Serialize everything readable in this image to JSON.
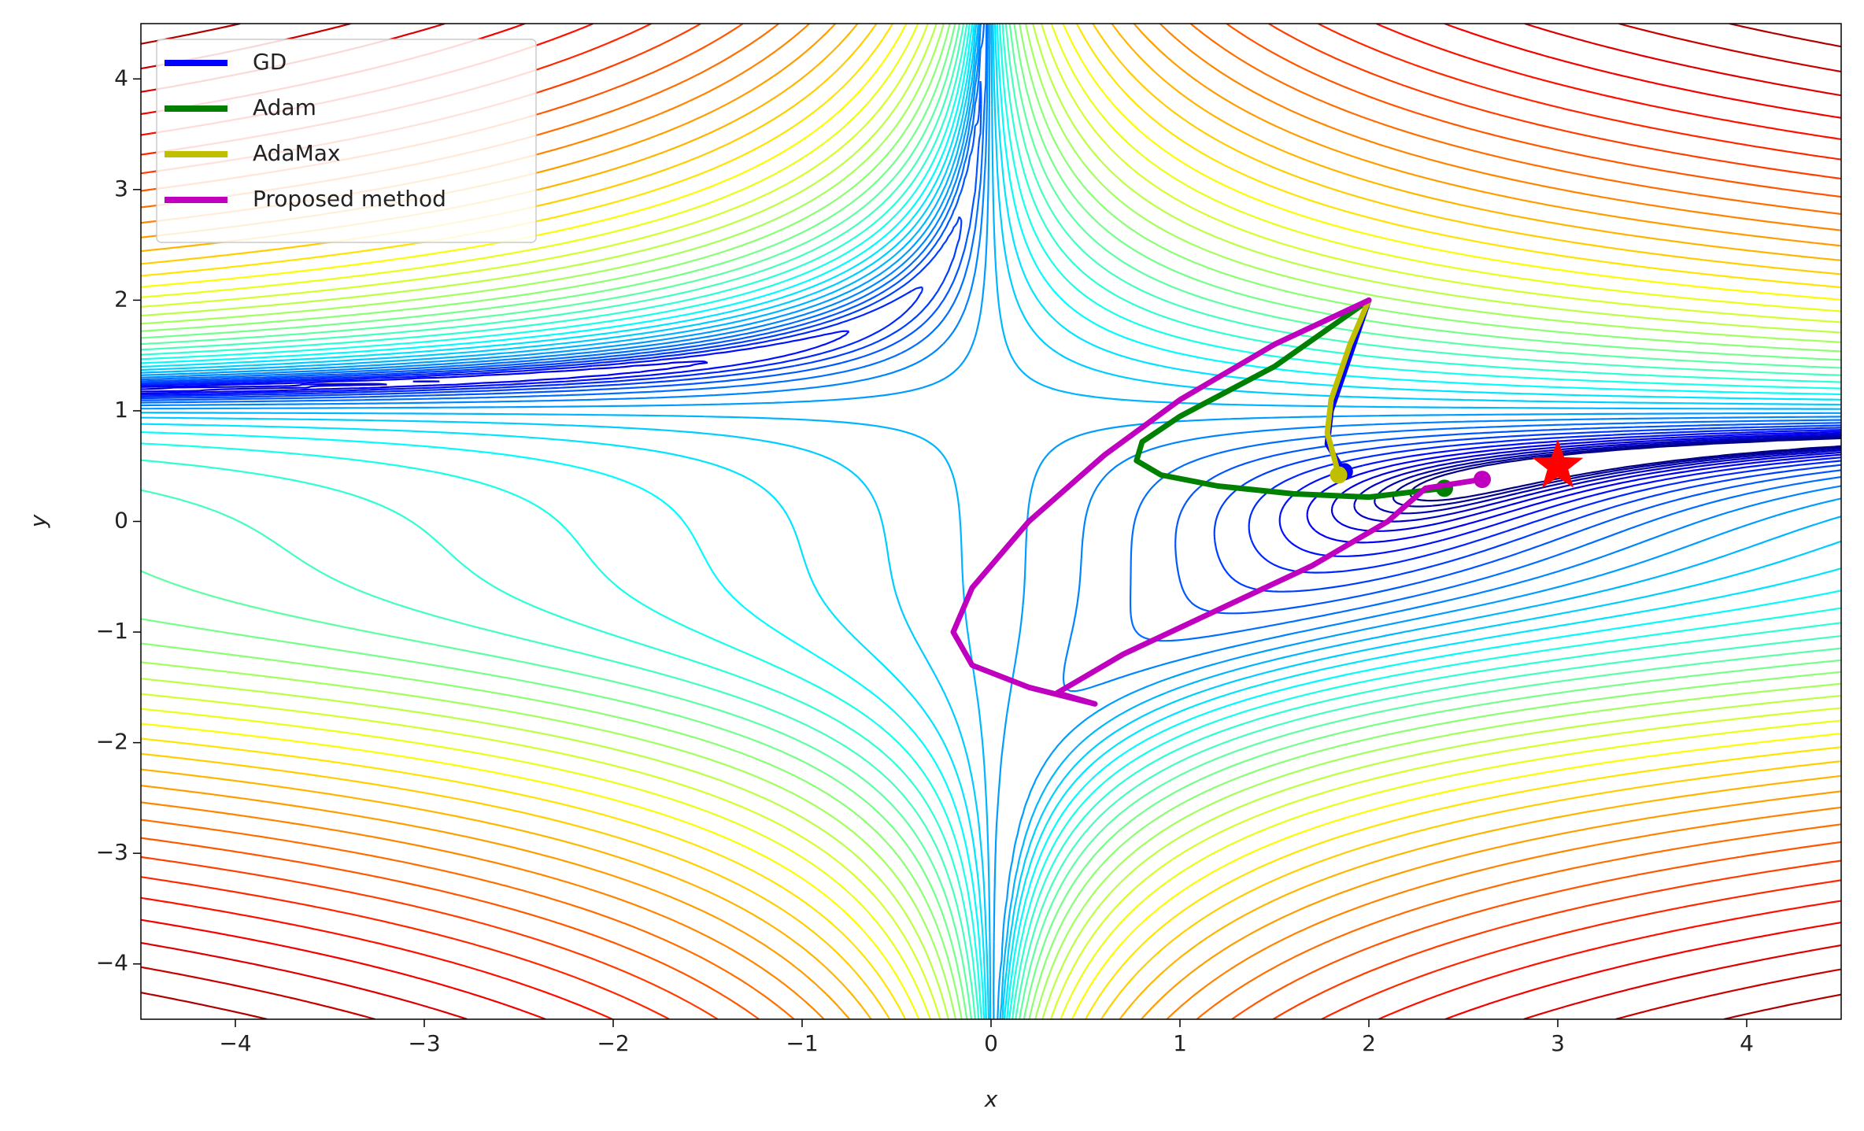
{
  "chart_data": {
    "type": "line",
    "xlabel": "x",
    "ylabel": "y",
    "xlim": [
      -4.5,
      4.5
    ],
    "ylim": [
      -4.5,
      4.5
    ],
    "xticks": [
      {
        "value": -4,
        "label": "−4"
      },
      {
        "value": -3,
        "label": "−3"
      },
      {
        "value": -2,
        "label": "−2"
      },
      {
        "value": -1,
        "label": "−1"
      },
      0,
      1,
      2,
      3,
      4
    ],
    "yticks": [
      {
        "value": -4,
        "label": "−4"
      },
      {
        "value": -3,
        "label": "−3"
      },
      {
        "value": -2,
        "label": "−2"
      },
      {
        "value": -1,
        "label": "−1"
      },
      0,
      1,
      2,
      3,
      4
    ],
    "legend": "upper left",
    "series": [
      {
        "name": "GD",
        "color": "#0000ff",
        "x": [
          2,
          1.9,
          1.8,
          1.78,
          1.85,
          1.87
        ],
        "y": [
          2,
          1.5,
          1.0,
          0.7,
          0.5,
          0.45
        ]
      },
      {
        "name": "Adam",
        "color": "#008000",
        "x": [
          2,
          1.5,
          1.0,
          0.8,
          0.77,
          0.9,
          1.2,
          1.6,
          2.0,
          2.4
        ],
        "y": [
          2,
          1.4,
          0.95,
          0.72,
          0.55,
          0.42,
          0.32,
          0.25,
          0.22,
          0.3
        ]
      },
      {
        "name": "AdaMax",
        "color": "#bfbf00",
        "x": [
          2,
          1.9,
          1.8,
          1.78,
          1.82,
          1.84
        ],
        "y": [
          2,
          1.6,
          1.1,
          0.8,
          0.55,
          0.42
        ]
      },
      {
        "name": "Proposed method",
        "color": "#bf00bf",
        "x": [
          2,
          1.5,
          1.0,
          0.6,
          0.2,
          -0.1,
          -0.2,
          -0.1,
          0.2,
          0.55,
          0.35,
          0.7,
          1.2,
          1.7,
          2.1,
          2.3,
          2.6
        ],
        "y": [
          2,
          1.6,
          1.1,
          0.6,
          0.0,
          -0.6,
          -1.0,
          -1.3,
          -1.5,
          -1.65,
          -1.55,
          -1.2,
          -0.8,
          -0.4,
          0.0,
          0.3,
          0.38
        ]
      }
    ],
    "optimum": {
      "x": 3,
      "y": 0.5,
      "color": "#ff0000"
    }
  }
}
